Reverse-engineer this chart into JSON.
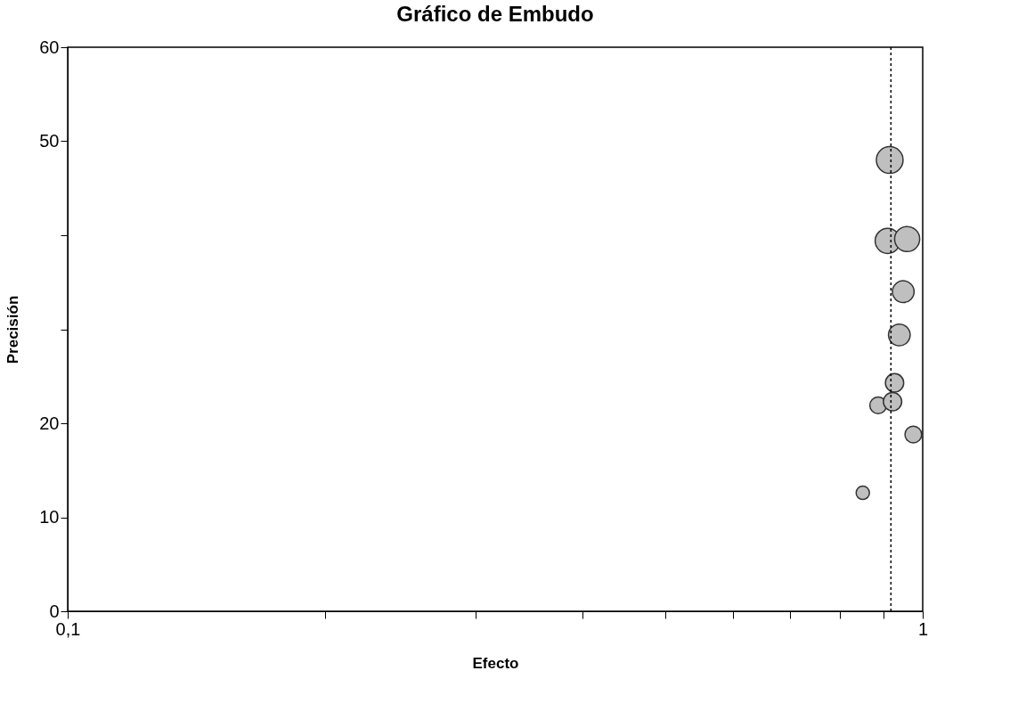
{
  "chart_data": {
    "type": "bubble",
    "title": "Gráfico de Embudo",
    "xlabel": "Efecto",
    "ylabel": "Precisión",
    "log": "x",
    "xlim": [
      0.1,
      1
    ],
    "xticks": [
      {
        "value": 0.1,
        "label": "0,1"
      },
      {
        "value": 0.2,
        "label": null
      },
      {
        "value": 0.3,
        "label": null
      },
      {
        "value": 0.4,
        "label": null
      },
      {
        "value": 0.5,
        "label": null
      },
      {
        "value": 0.6,
        "label": null
      },
      {
        "value": 0.7,
        "label": null
      },
      {
        "value": 0.8,
        "label": null
      },
      {
        "value": 0.9,
        "label": null
      },
      1
    ],
    "ylim": [
      0,
      60
    ],
    "yticks": [
      0,
      10,
      20,
      {
        "value": 30,
        "label": null
      },
      {
        "value": 40,
        "label": null
      },
      50,
      60
    ],
    "series": [
      {
        "color": "#bfbfbf",
        "x": [
          0.915,
          0.91,
          0.959,
          0.949,
          0.939,
          0.927,
          0.887,
          0.922,
          0.975,
          0.851
        ],
        "values": [
          48.0,
          39.4,
          39.6,
          34.0,
          29.4,
          24.3,
          21.9,
          22.3,
          18.8,
          12.6
        ],
        "sizes": [
          1,
          0.88,
          0.88,
          0.66,
          0.66,
          0.47,
          0.39,
          0.47,
          0.39,
          0.25
        ]
      }
    ],
    "ref_lines": [
      {
        "axis": "x",
        "value": 0.918,
        "label": null,
        "color": "#000000",
        "line_style": "dotted"
      }
    ],
    "grid": false
  }
}
